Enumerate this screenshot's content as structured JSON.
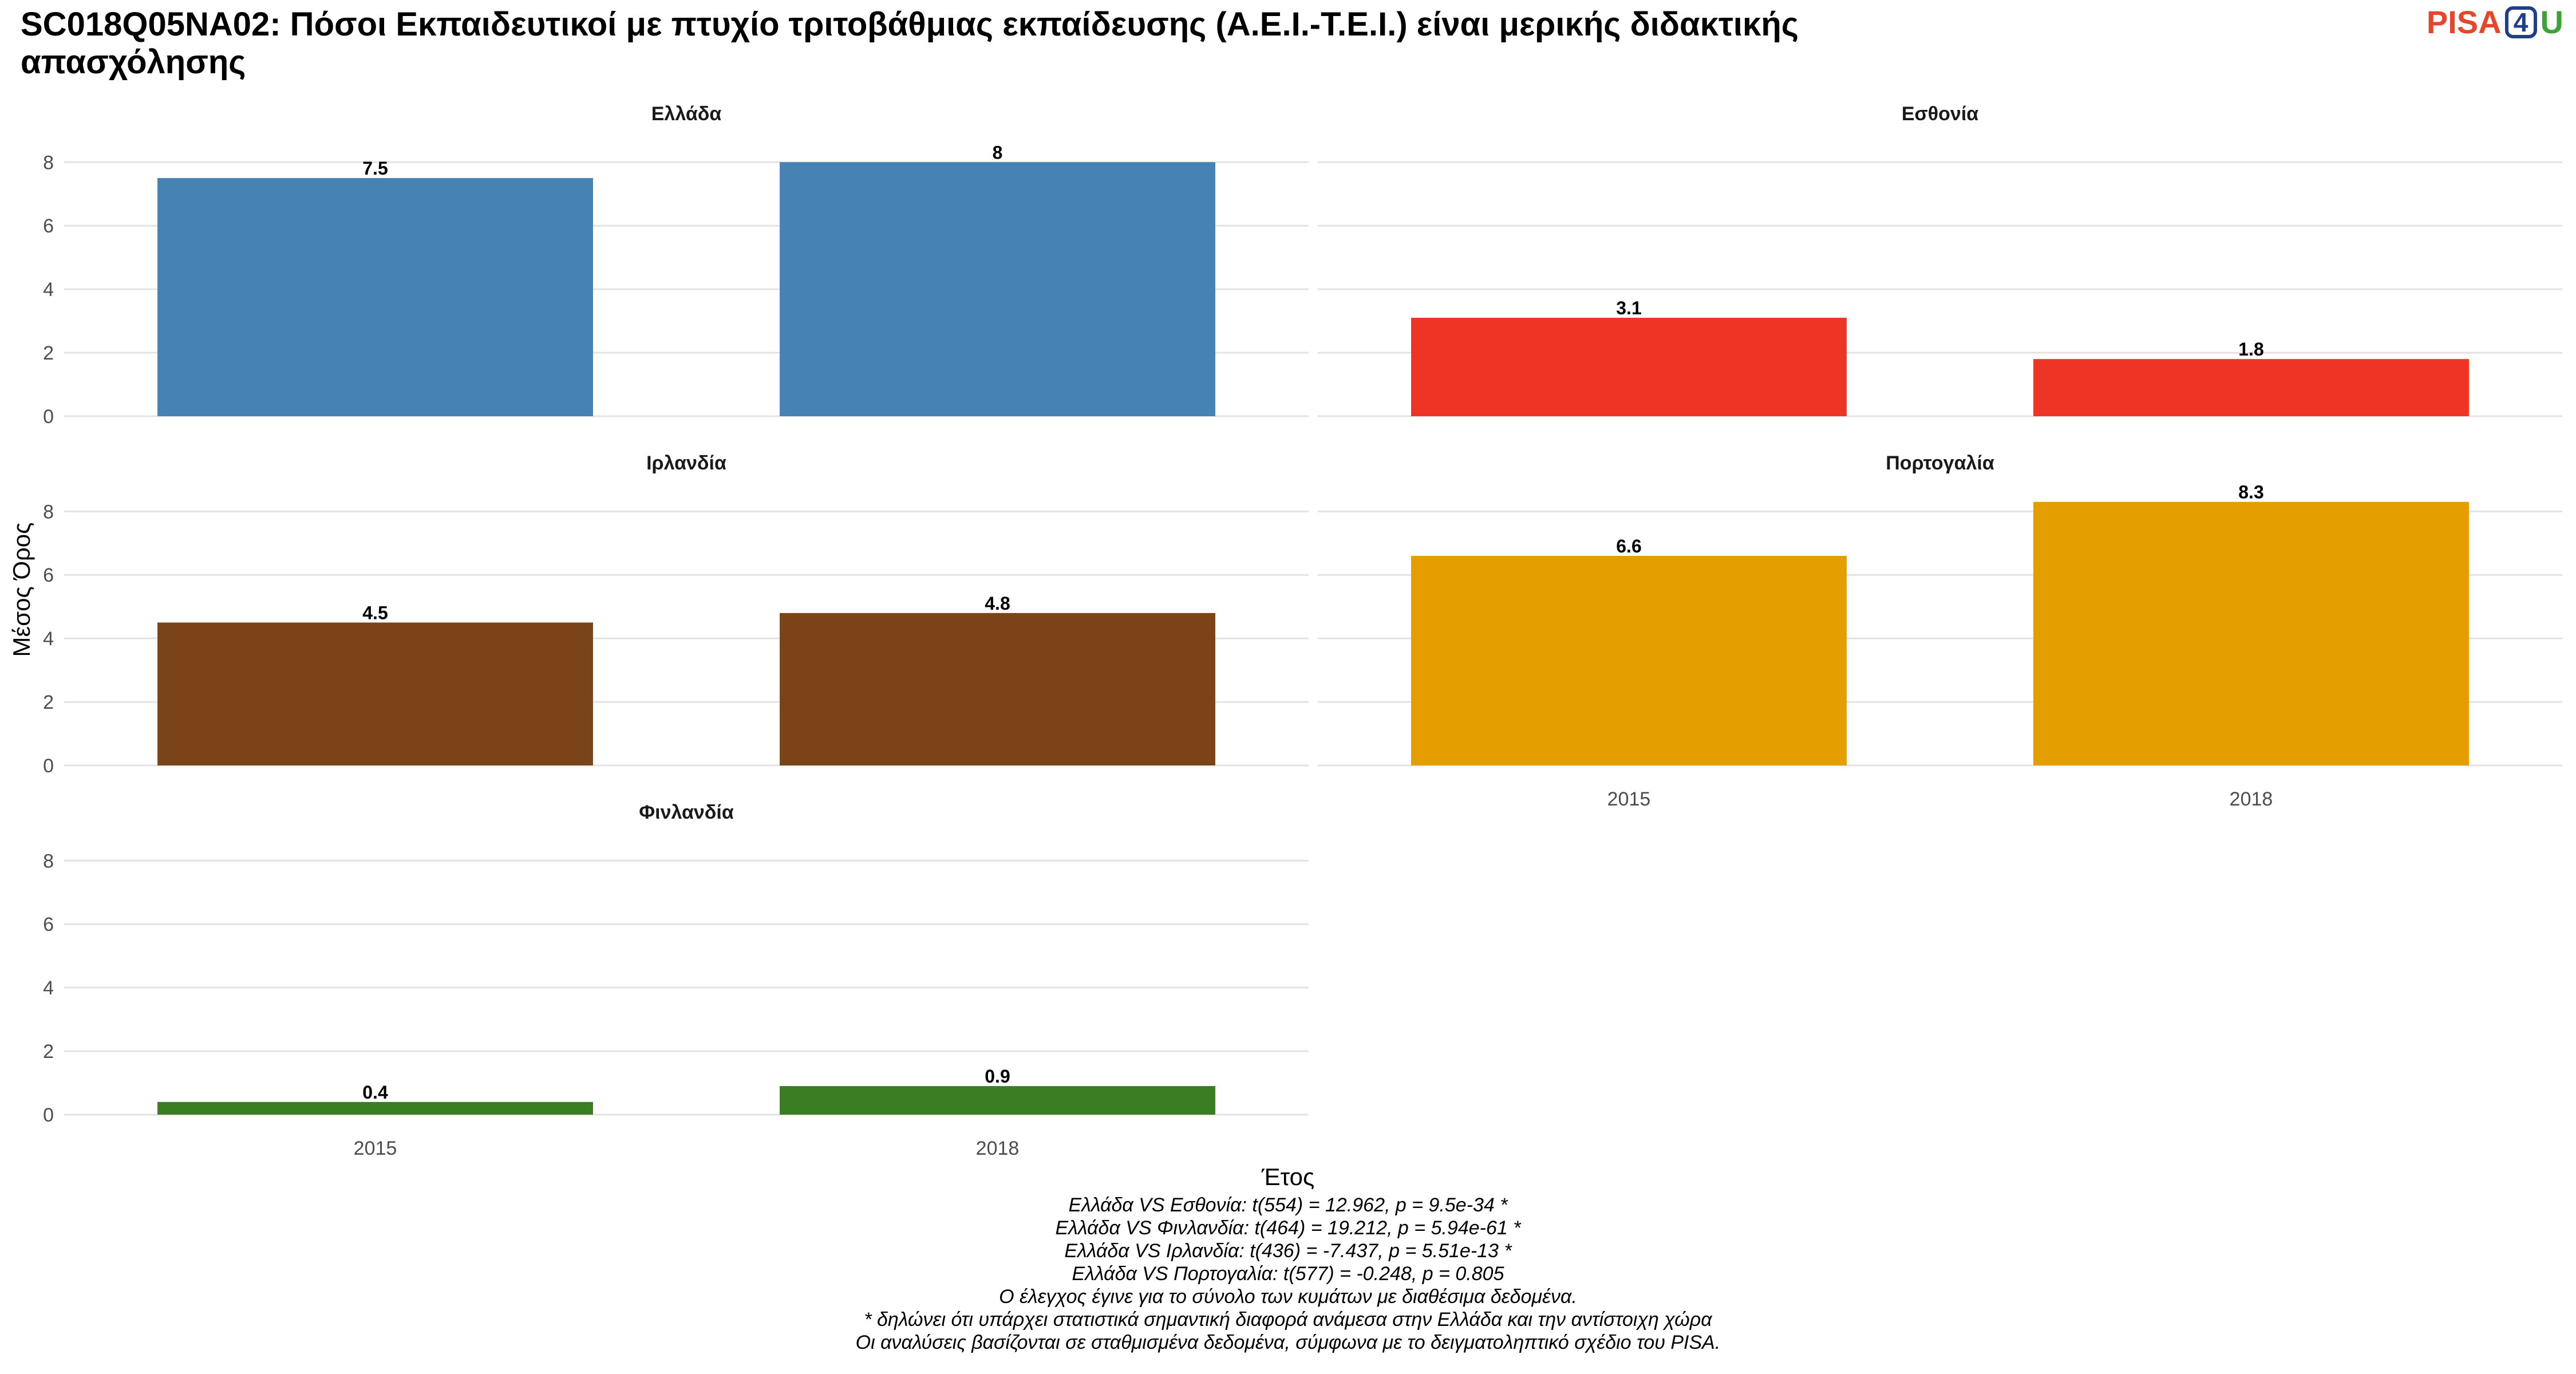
{
  "title": "SC018Q05NA02: Πόσοι Εκπαιδευτικοί με πτυχίο τριτοβάθμιας εκπαίδευσης (Α.Ε.Ι.-Τ.Ε.Ι.) είναι μερικής διδακτικής απασχόλησης",
  "logo": {
    "part1": "PISA",
    "part2": "4",
    "part3": "U"
  },
  "footnotes": [
    "Ελλάδα VS Εσθονία: t(554) = 12.962, p = 9.5e-34 *",
    "Ελλάδα VS Φινλανδία: t(464) = 19.212, p = 5.94e-61 *",
    "Ελλάδα VS Ιρλανδία: t(436) = -7.437, p = 5.51e-13 *",
    "Ελλάδα VS Πορτογαλία: t(577) = -0.248, p = 0.805",
    "Ο έλεγχος έγινε για το σύνολο των κυμάτων με διαθέσιμα δεδομένα.",
    "* δηλώνει ότι υπάρχει στατιστικά σημαντική διαφορά ανάμεσα στην Ελλάδα και την αντίστοιχη χώρα",
    "Οι αναλύσεις βασίζονται σε σταθμισμένα δεδομένα, σύμφωνα με το δειγματοληπτικό σχέδιο του PISA."
  ],
  "chart_data": {
    "type": "bar",
    "xlabel": "Έτος",
    "ylabel": "Μέσος Όρος",
    "categories": [
      "2015",
      "2018"
    ],
    "ylim": [
      0,
      8.6
    ],
    "yticks": [
      0,
      2,
      4,
      6,
      8
    ],
    "grid": true,
    "panels": [
      {
        "name": "Ελλάδα",
        "color": "#4682b4",
        "values": [
          7.5,
          8
        ],
        "labels": [
          "7.5",
          "8"
        ]
      },
      {
        "name": "Εσθονία",
        "color": "#ee3424",
        "values": [
          3.1,
          1.8
        ],
        "labels": [
          "3.1",
          "1.8"
        ]
      },
      {
        "name": "Ιρλανδία",
        "color": "#7a4418",
        "values": [
          4.5,
          4.8
        ],
        "labels": [
          "4.5",
          "4.8"
        ]
      },
      {
        "name": "Πορτογαλία",
        "color": "#e59e00",
        "values": [
          6.6,
          8.3
        ],
        "labels": [
          "6.6",
          "8.3"
        ]
      },
      {
        "name": "Φινλανδία",
        "color": "#3a7d22",
        "values": [
          0.4,
          0.9
        ],
        "labels": [
          "0.4",
          "0.9"
        ]
      }
    ]
  }
}
